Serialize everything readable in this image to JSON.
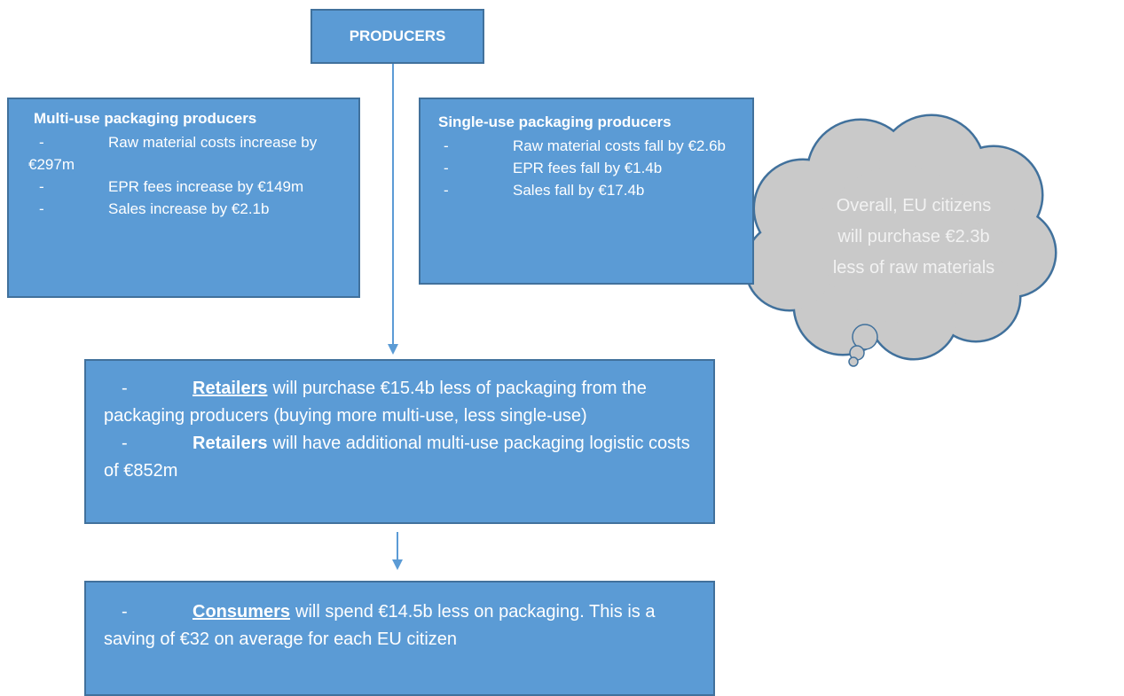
{
  "bullet": "-",
  "producers": {
    "label": "PRODUCERS"
  },
  "multi_use": {
    "title": "Multi-use packaging producers",
    "items": [
      "Raw material costs increase by €297m",
      "EPR fees increase by €149m",
      "Sales increase by €2.1b"
    ]
  },
  "single_use": {
    "title": "Single-use packaging producers",
    "items": [
      "Raw material costs fall by €2.6b",
      "EPR fees fall by €1.4b",
      "Sales fall by €17.4b"
    ]
  },
  "cloud": {
    "lines": [
      "Overall, EU citizens",
      "will purchase €2.3b",
      "less of raw materials"
    ]
  },
  "retailers": {
    "items": [
      {
        "bold": "Retailers",
        "underline": true,
        "text": "will purchase €15.4b less of packaging from the packaging producers (buying more multi-use, less single-use)"
      },
      {
        "bold": "Retailers",
        "underline": false,
        "text": "will have additional multi-use packaging logistic costs of €852m"
      }
    ]
  },
  "consumers": {
    "items": [
      {
        "bold": "Consumers",
        "underline": true,
        "text": "will spend €14.5b less on packaging. This is a saving of €32 on average for each EU citizen"
      }
    ]
  }
}
